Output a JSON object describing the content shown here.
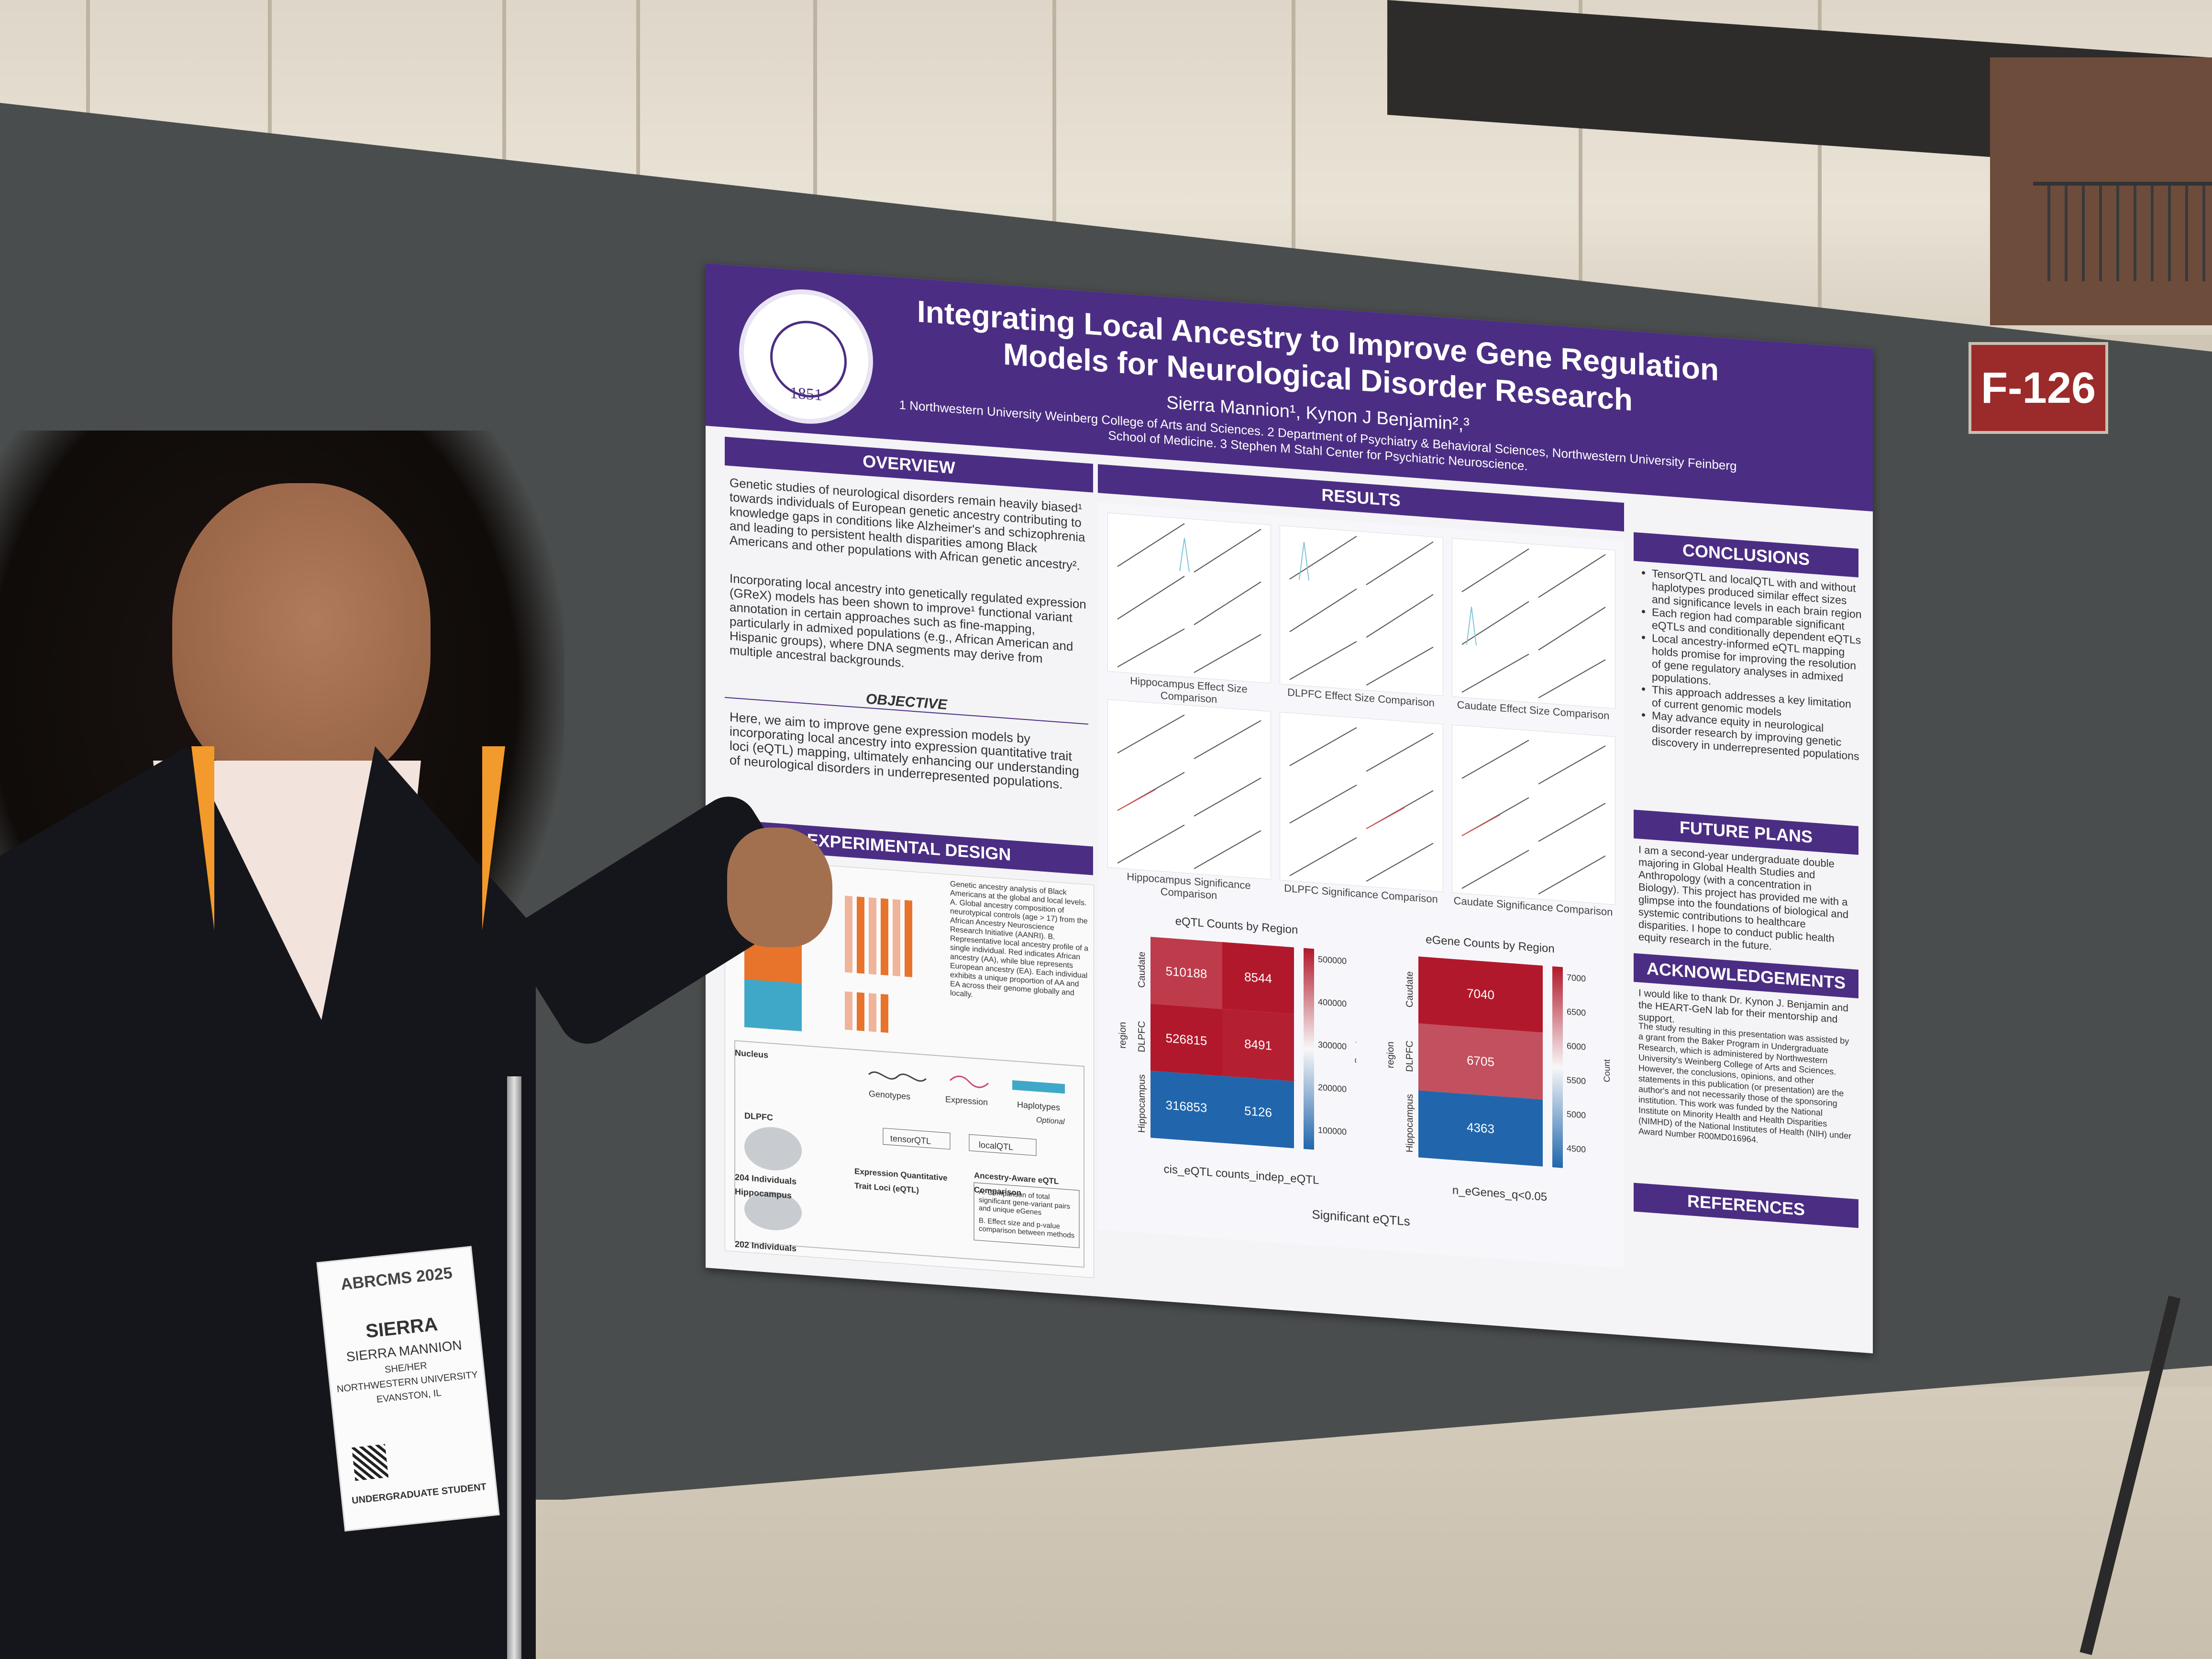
{
  "booth_number": "F-126",
  "poster": {
    "seal_text": "NORTHWESTERN UNIVERSITY",
    "seal_year": "1851",
    "title": "Integrating Local Ancestry to Improve Gene Regulation Models for Neurological Disorder Research",
    "authors": "Sierra Mannion¹, Kynon J Benjamin²,³",
    "affiliations": "1 Northwestern University Weinberg College of Arts and Sciences. 2 Department of Psychiatry & Behavioral Sciences, Northwestern University Feinberg School of Medicine. 3 Stephen M Stahl Center for Psychiatric Neuroscience.",
    "overview": {
      "heading": "OVERVIEW",
      "p1": "Genetic studies of neurological disorders remain heavily biased¹ towards individuals of European genetic ancestry contributing to knowledge gaps in conditions like Alzheimer's and schizophrenia and leading to persistent health disparities among Black Americans and other populations with African genetic ancestry².",
      "p2": "Incorporating local ancestry into genetically regulated expression (GReX) models has been shown to improve¹ functional variant annotation in certain approaches such as fine-mapping, particularly in admixed populations (e.g., African American and Hispanic groups), where DNA segments may derive from multiple ancestral backgrounds."
    },
    "objective": {
      "heading": "OBJECTIVE",
      "text": "Here, we aim to improve gene expression models by incorporating local ancestry into expression quantitative trait loci (eQTL) mapping, ultimately enhancing our understanding of neurological disorders in underrepresented populations."
    },
    "experimental_design": {
      "heading": "EXPERIMENTAL DESIGN",
      "caption": "Genetic ancestry analysis of Black Americans at the global and local levels. A. Global ancestry composition of neurotypical controls (age > 17) from the African Ancestry Neuroscience Research Initiative (AANRI). B. Representative local ancestry profile of a single individual. Red indicates African ancestry (AA), while blue represents European ancestry (EA). Each individual exhibits a unique proportion of AA and EA across their genome globally and locally.",
      "brain_regions": [
        "Nucleus",
        "DLPFC",
        "204 Individuals",
        "Hippocampus",
        "202 Individuals"
      ],
      "inputs": [
        "Genotypes",
        "Expression",
        "Haplotypes",
        "Optional"
      ],
      "methods": [
        "tensorQTL",
        "localQTL"
      ],
      "eqtl_label": "Expression Quantitative Trait Loci (eQTL)",
      "comparison_heading": "Ancestry-Aware eQTL Comparison",
      "comparison_items": [
        "A. Comparison of total significant gene-variant pairs and unique eGenes",
        "B. Effect size and p-value comparison between methods"
      ]
    },
    "results": {
      "heading": "RESULTS",
      "effect_captions": [
        "Hippocampus Effect Size Comparison",
        "DLPFC Effect Size Comparison",
        "Caudate Effect Size Comparison"
      ],
      "significance_captions": [
        "Hippocampus Significance Comparison",
        "DLPFC Significance Comparison",
        "Caudate Significance Comparison"
      ],
      "footer": "Significant eQTLs"
    },
    "conclusions": {
      "heading": "CONCLUSIONS",
      "items": [
        "TensorQTL and localQTL with and without haplotypes produced similar effect sizes and significance levels in each brain region",
        "Each region had comparable significant eQTLs and conditionally dependent eQTLs",
        "Local ancestry-informed eQTL mapping holds promise for improving the resolution of gene regulatory analyses in admixed populations.",
        "This approach addresses a key limitation of current genomic models",
        "May advance equity in neurological disorder research by improving genetic discovery in underrepresented populations"
      ]
    },
    "future_plans": {
      "heading": "FUTURE PLANS",
      "text": "I am a second-year undergraduate double majoring in Global Health Studies and Anthropology (with a concentration in Biology). This project has provided me with a glimpse into the foundations of biological and systemic contributions to healthcare disparities. I hope to conduct public health equity research in the future."
    },
    "acknowledgements": {
      "heading": "ACKNOWLEDGEMENTS",
      "p1": "I would like to thank Dr. Kynon J. Benjamin and the HEART-GeN lab for their mentorship and support.",
      "p2": "The study resulting in this presentation was assisted by a grant from the Baker Program in Undergraduate Research, which is administered by Northwestern University's Weinberg College of Arts and Sciences. However, the conclusions, opinions, and other statements in this publication (or presentation) are the author's and not necessarily those of the sponsoring institution. This work was funded by the National Institute on Minority Health and Health Disparities (NIMHD) of the National Institutes of Health (NIH) under Award Number R00MD016964."
    },
    "references": {
      "heading": "REFERENCES"
    }
  },
  "chart_data": [
    {
      "type": "heatmap",
      "title": "eQTL Counts by Region",
      "xlabel": "cis_eQTL  counts_indep_eQTL",
      "ylabel": "region",
      "rows": [
        "Caudate",
        "DLPFC",
        "Hippocampus"
      ],
      "columns": [
        "cis_eQTL",
        "counts_indep_eQTL"
      ],
      "values": [
        [
          510188,
          8544
        ],
        [
          526815,
          8491
        ],
        [
          316853,
          5126
        ]
      ],
      "colorbar_label": "Count",
      "colorbar_ticks": [
        500000,
        400000,
        300000,
        200000,
        100000
      ],
      "colormap": [
        "#b2182b",
        "#f7f7f7",
        "#2166ac"
      ]
    },
    {
      "type": "heatmap",
      "title": "eGene Counts by Region",
      "xlabel": "n_eGenes_q<0.05",
      "ylabel": "region",
      "rows": [
        "Caudate",
        "DLPFC",
        "Hippocampus"
      ],
      "columns": [
        "n_eGenes_q<0.05"
      ],
      "values": [
        [
          7040
        ],
        [
          6705
        ],
        [
          4363
        ]
      ],
      "colorbar_label": "Count",
      "colorbar_ticks": [
        7000,
        6500,
        6000,
        5500,
        5000,
        4500
      ],
      "colormap": [
        "#b2182b",
        "#f7f7f7",
        "#2166ac"
      ]
    }
  ],
  "badge": {
    "event": "ABRCMS 2025",
    "first_name": "SIERRA",
    "full_name": "SIERRA MANNION",
    "pronouns": "SHE/HER",
    "institution": "NORTHWESTERN UNIVERSITY",
    "location": "EVANSTON, IL",
    "role": "UNDERGRADUATE STUDENT"
  },
  "colors": {
    "purple": "#4b2e83",
    "booth_red": "#9b2a2a",
    "lanyard_orange": "#f39a2c",
    "board_gray": "#4a4d4d"
  }
}
